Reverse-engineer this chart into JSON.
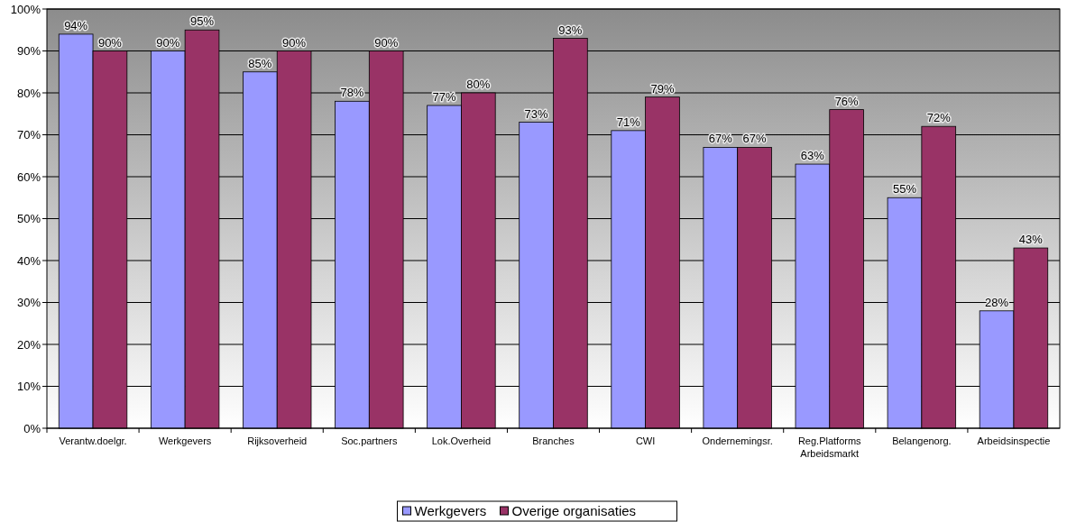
{
  "chart_data": {
    "type": "bar",
    "categories": [
      "Verantw.doelgr.",
      "Werkgevers",
      "Rijksoverheid",
      "Soc.partners",
      "Lok.Overheid",
      "Branches",
      "CWI",
      "Ondernemingsr.",
      "Reg.Platforms Arbeidsmarkt",
      "Belangenorg.",
      "Arbeidsinspectie"
    ],
    "series": [
      {
        "name": "Werkgevers",
        "color": "#9999ff",
        "values": [
          94,
          90,
          85,
          78,
          77,
          73,
          71,
          67,
          63,
          55,
          28
        ],
        "value_labels": [
          "94%",
          "90%",
          "85%",
          "78%",
          "77%",
          "73%",
          "71%",
          "67%",
          "63%",
          "55%",
          "28%"
        ]
      },
      {
        "name": "Overige organisaties",
        "color": "#993366",
        "values": [
          90,
          95,
          90,
          90,
          80,
          93,
          79,
          67,
          76,
          72,
          43
        ],
        "value_labels": [
          "90%",
          "95%",
          "90%",
          "90%",
          "80%",
          "93%",
          "79%",
          "67%",
          "76%",
          "72%",
          "43%"
        ]
      }
    ],
    "ylim": [
      0,
      100
    ],
    "yticks": [
      {
        "value": 0,
        "label": "0%"
      },
      {
        "value": 10,
        "label": "10%"
      },
      {
        "value": 20,
        "label": "20%"
      },
      {
        "value": 30,
        "label": "30%"
      },
      {
        "value": 40,
        "label": "40%"
      },
      {
        "value": 50,
        "label": "50%"
      },
      {
        "value": 60,
        "label": "60%"
      },
      {
        "value": 70,
        "label": "70%"
      },
      {
        "value": 80,
        "label": "80%"
      },
      {
        "value": 90,
        "label": "90%"
      },
      {
        "value": 100,
        "label": "100%"
      }
    ],
    "grid": "y",
    "legend": "bottom"
  }
}
